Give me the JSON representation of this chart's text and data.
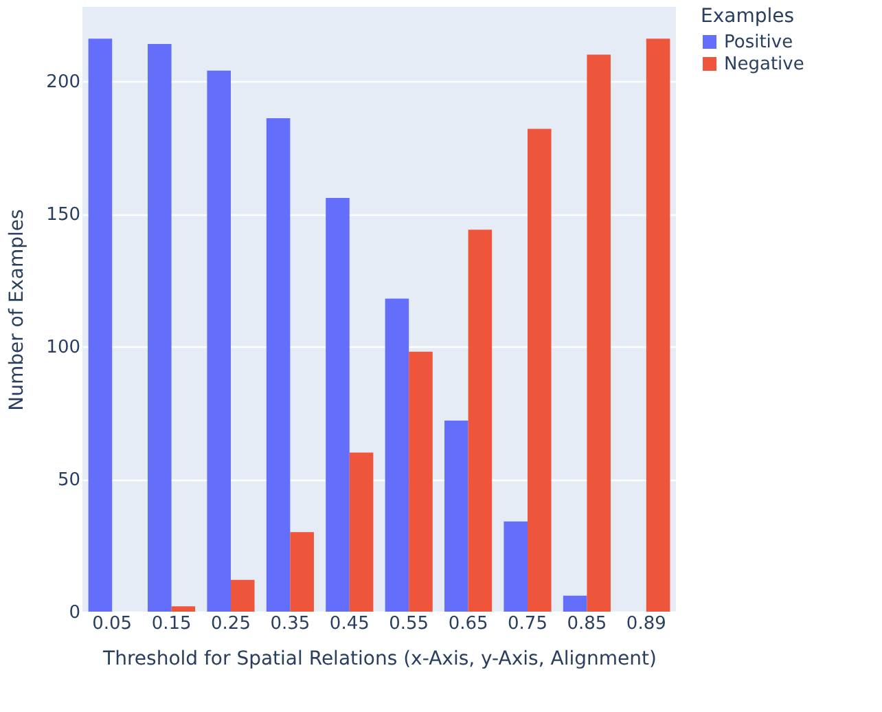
{
  "chart_data": {
    "type": "bar",
    "categories": [
      "0.05",
      "0.15",
      "0.25",
      "0.35",
      "0.45",
      "0.55",
      "0.65",
      "0.75",
      "0.85",
      "0.89"
    ],
    "series": [
      {
        "name": "Positive",
        "color": "#636efa",
        "values": [
          216,
          214,
          204,
          186,
          156,
          118,
          72,
          34,
          6,
          0
        ]
      },
      {
        "name": "Negative",
        "color": "#ef553b",
        "values": [
          0,
          2,
          12,
          30,
          60,
          98,
          144,
          182,
          210,
          216
        ]
      }
    ],
    "xlabel": "Threshold for Spatial Relations (x-Axis, y-Axis, Alignment)",
    "ylabel": "Number of Examples",
    "legend_title": "Examples",
    "ylim": [
      0,
      228
    ],
    "yticks": [
      0,
      50,
      100,
      150,
      200
    ],
    "grid": "y",
    "legend": "top right"
  }
}
